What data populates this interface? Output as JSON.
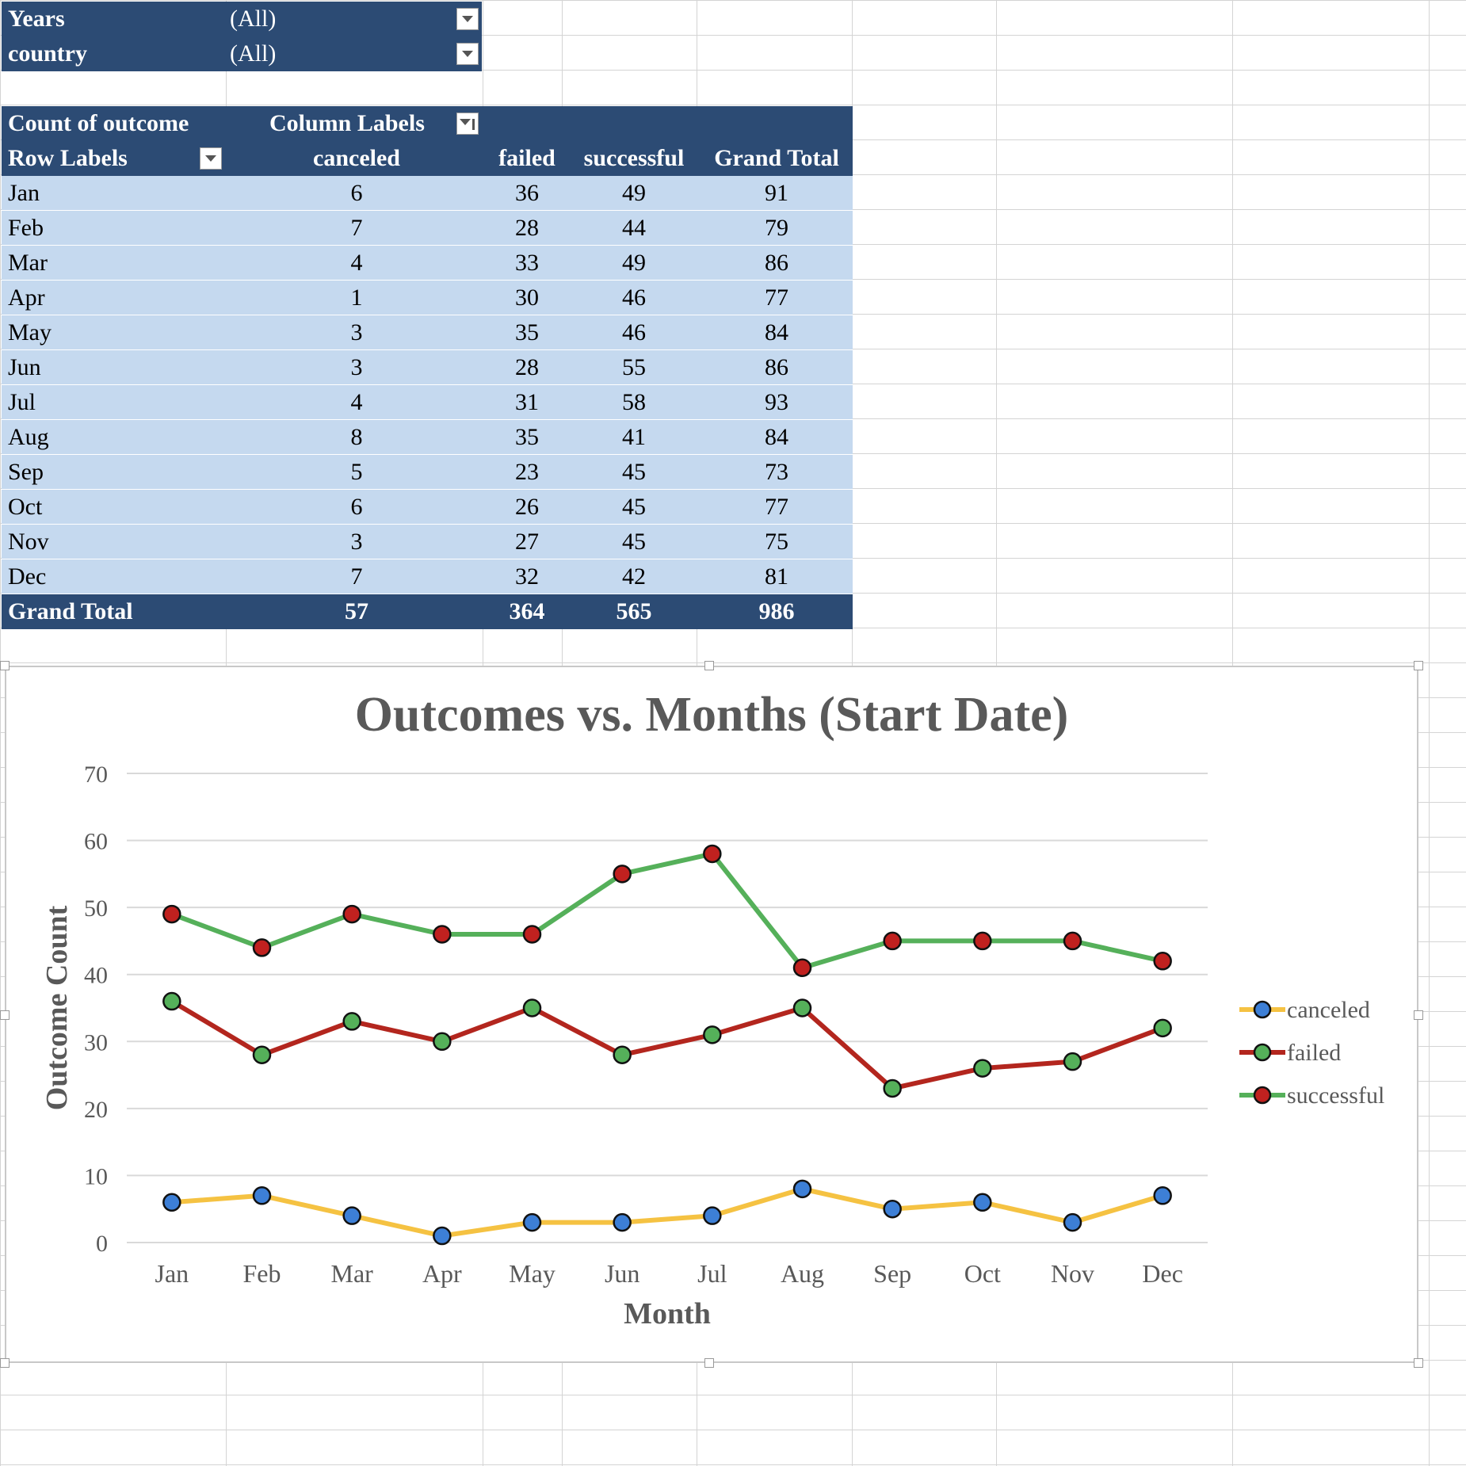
{
  "filters": [
    {
      "label": "Years",
      "value": "(All)"
    },
    {
      "label": "country",
      "value": "(All)"
    }
  ],
  "pivot": {
    "measure_label": "Count of outcome",
    "column_labels": "Column Labels",
    "row_labels": "Row Labels",
    "columns": [
      "canceled",
      "failed",
      "successful",
      "Grand Total"
    ],
    "rows": [
      {
        "label": "Jan",
        "values": [
          "6",
          "36",
          "49",
          "91"
        ]
      },
      {
        "label": "Feb",
        "values": [
          "7",
          "28",
          "44",
          "79"
        ]
      },
      {
        "label": "Mar",
        "values": [
          "4",
          "33",
          "49",
          "86"
        ]
      },
      {
        "label": "Apr",
        "values": [
          "1",
          "30",
          "46",
          "77"
        ]
      },
      {
        "label": "May",
        "values": [
          "3",
          "35",
          "46",
          "84"
        ]
      },
      {
        "label": "Jun",
        "values": [
          "3",
          "28",
          "55",
          "86"
        ]
      },
      {
        "label": "Jul",
        "values": [
          "4",
          "31",
          "58",
          "93"
        ]
      },
      {
        "label": "Aug",
        "values": [
          "8",
          "35",
          "41",
          "84"
        ]
      },
      {
        "label": "Sep",
        "values": [
          "5",
          "23",
          "45",
          "73"
        ]
      },
      {
        "label": "Oct",
        "values": [
          "6",
          "26",
          "45",
          "77"
        ]
      },
      {
        "label": "Nov",
        "values": [
          "3",
          "27",
          "45",
          "75"
        ]
      },
      {
        "label": "Dec",
        "values": [
          "7",
          "32",
          "42",
          "81"
        ]
      }
    ],
    "grand_total": {
      "label": "Grand Total",
      "values": [
        "57",
        "364",
        "565",
        "986"
      ]
    }
  },
  "chart_data": {
    "type": "line",
    "title": "Outcomes vs. Months (Start Date)",
    "xlabel": "Month",
    "ylabel": "Outcome Count",
    "categories": [
      "Jan",
      "Feb",
      "Mar",
      "Apr",
      "May",
      "Jun",
      "Jul",
      "Aug",
      "Sep",
      "Oct",
      "Nov",
      "Dec"
    ],
    "ylim": [
      0,
      70
    ],
    "yticks": [
      0,
      10,
      20,
      30,
      40,
      50,
      60,
      70
    ],
    "grid": true,
    "legend_position": "right",
    "series": [
      {
        "name": "canceled",
        "values": [
          6,
          7,
          4,
          1,
          3,
          3,
          4,
          8,
          5,
          6,
          3,
          7
        ],
        "line_color": "#f5c242",
        "marker_color": "#3d7fd6"
      },
      {
        "name": "failed",
        "values": [
          36,
          28,
          33,
          30,
          35,
          28,
          31,
          35,
          23,
          26,
          27,
          32
        ],
        "line_color": "#b3261e",
        "marker_color": "#55b05a"
      },
      {
        "name": "successful",
        "values": [
          49,
          44,
          49,
          46,
          46,
          55,
          58,
          41,
          45,
          45,
          45,
          42
        ],
        "line_color": "#55b05a",
        "marker_color": "#c0211f"
      }
    ]
  }
}
